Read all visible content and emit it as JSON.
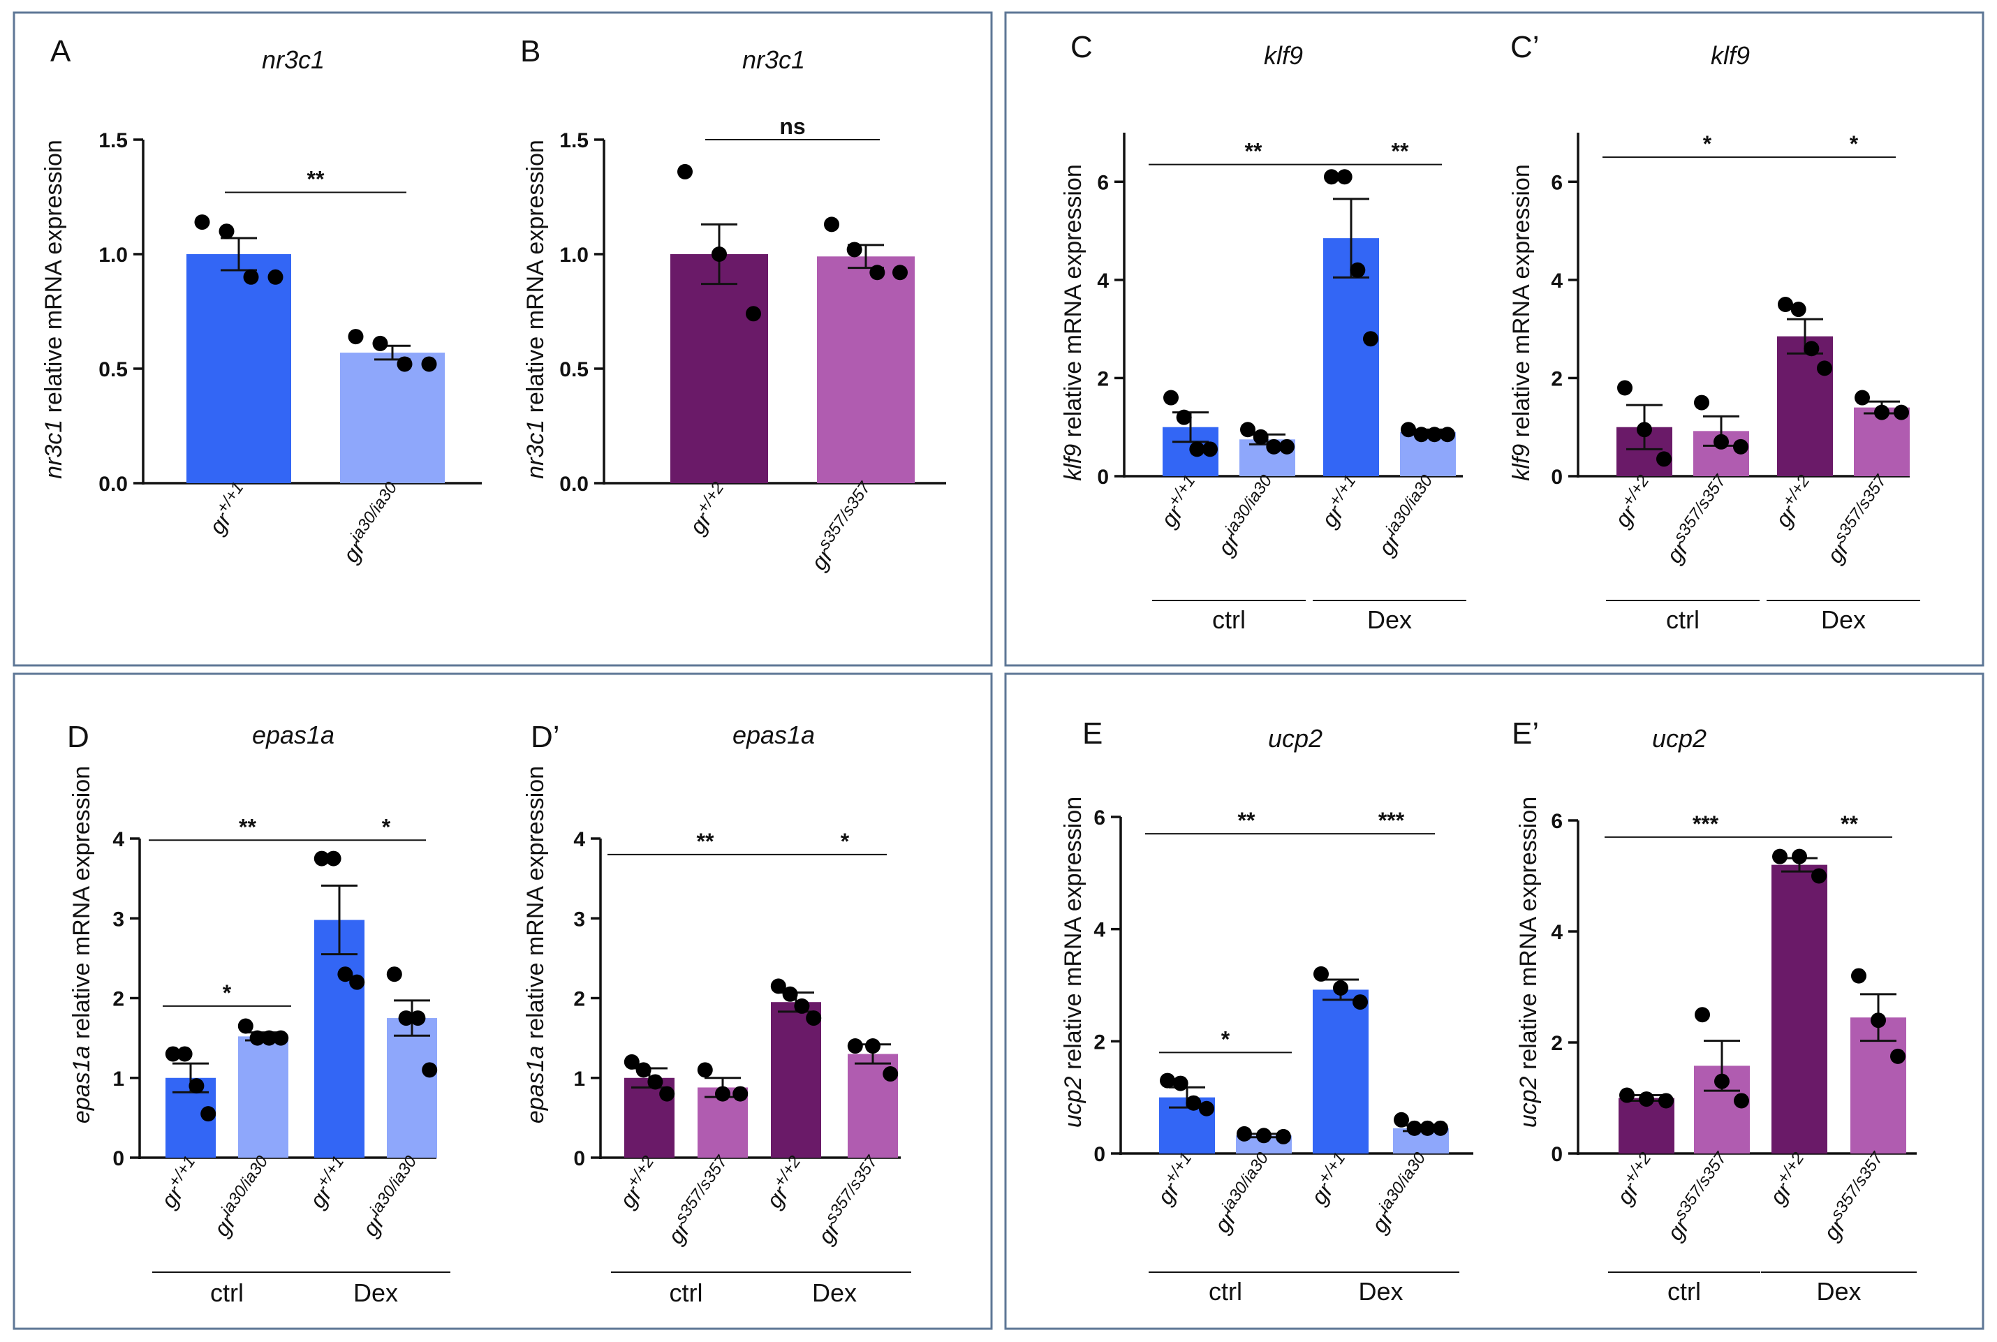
{
  "figure": {
    "colors": {
      "blue_dark": "#3366f5",
      "blue_light": "#8ea7fb",
      "purple_dark": "#6a1a68",
      "purple_light": "#b05cb0",
      "frame": "#5e7796"
    }
  },
  "chart_data": [
    {
      "id": "A",
      "panel_label": "A",
      "title": "nr3c1",
      "type": "bar",
      "ylabel_gene": "nr3c1",
      "ylabel_rest": " relative mRNA expression",
      "ylim": [
        0,
        1.5
      ],
      "yticks": [
        "0.0",
        "0.5",
        "1.0",
        "1.5"
      ],
      "categories": [
        {
          "base": "gr",
          "sup": "+/+1",
          "value": 1.0,
          "sem": 0.07,
          "color": "#3366f5",
          "points": [
            1.14,
            1.1,
            0.9,
            0.9
          ]
        },
        {
          "base": "gr",
          "sup": "ia30/ia30",
          "value": 0.57,
          "sem": 0.03,
          "color": "#8ea7fb",
          "points": [
            0.64,
            0.61,
            0.52,
            0.52
          ]
        }
      ],
      "groups": [],
      "significance": [
        {
          "from": 0,
          "to": 1,
          "label": "**"
        }
      ]
    },
    {
      "id": "B",
      "panel_label": "B",
      "title": "nr3c1",
      "type": "bar",
      "ylabel_gene": "nr3c1",
      "ylabel_rest": " relative mRNA expression",
      "ylim": [
        0,
        1.5
      ],
      "yticks": [
        "0.0",
        "0.5",
        "1.0",
        "1.5"
      ],
      "categories": [
        {
          "base": "gr",
          "sup": "+/+2",
          "value": 1.0,
          "sem": 0.13,
          "color": "#6a1a68",
          "points": [
            1.36,
            1.0,
            0.74
          ]
        },
        {
          "base": "gr",
          "sup": "s357/s357",
          "value": 0.99,
          "sem": 0.05,
          "color": "#b05cb0",
          "points": [
            1.13,
            1.02,
            0.92,
            0.92
          ]
        }
      ],
      "groups": [],
      "significance": [
        {
          "from": 0,
          "to": 1,
          "label": "ns"
        }
      ]
    },
    {
      "id": "C",
      "panel_label": "C",
      "title": "klf9",
      "type": "bar",
      "ylabel_gene": "klf9",
      "ylabel_rest": " relative mRNA expression",
      "ylim": [
        0,
        7
      ],
      "yticks": [
        "0",
        "2",
        "4",
        "6"
      ],
      "categories": [
        {
          "base": "gr",
          "sup": "+/+1",
          "value": 1.0,
          "sem": 0.3,
          "color": "#3366f5",
          "points": [
            1.6,
            1.2,
            0.55,
            0.55
          ]
        },
        {
          "base": "gr",
          "sup": "ia30/ia30",
          "value": 0.75,
          "sem": 0.1,
          "color": "#8ea7fb",
          "points": [
            0.95,
            0.8,
            0.6,
            0.6
          ]
        },
        {
          "base": "gr",
          "sup": "+/+1",
          "value": 4.85,
          "sem": 0.8,
          "color": "#3366f5",
          "points": [
            6.1,
            6.1,
            4.2,
            2.8
          ]
        },
        {
          "base": "gr",
          "sup": "ia30/ia30",
          "value": 0.9,
          "sem": 0.05,
          "color": "#8ea7fb",
          "points": [
            0.95,
            0.85,
            0.85,
            0.85
          ]
        }
      ],
      "groups": [
        {
          "label": "ctrl",
          "from": 0,
          "to": 1
        },
        {
          "label": "Dex",
          "from": 2,
          "to": 3
        }
      ],
      "significance": [
        {
          "from": 0,
          "to": 2,
          "label": "**"
        },
        {
          "from": 2,
          "to": 3,
          "label": "**"
        }
      ]
    },
    {
      "id": "C2",
      "panel_label": "C’",
      "title": "klf9",
      "type": "bar",
      "ylabel_gene": "klf9",
      "ylabel_rest": " relative mRNA expression",
      "ylim": [
        0,
        7
      ],
      "yticks": [
        "0",
        "2",
        "4",
        "6"
      ],
      "categories": [
        {
          "base": "gr",
          "sup": "+/+2",
          "value": 1.0,
          "sem": 0.45,
          "color": "#6a1a68",
          "points": [
            1.8,
            0.95,
            0.35
          ]
        },
        {
          "base": "gr",
          "sup": "s357/s357",
          "value": 0.92,
          "sem": 0.3,
          "color": "#b05cb0",
          "points": [
            1.5,
            0.7,
            0.6
          ]
        },
        {
          "base": "gr",
          "sup": "+/+2",
          "value": 2.85,
          "sem": 0.35,
          "color": "#6a1a68",
          "points": [
            3.5,
            3.4,
            2.6,
            2.2
          ]
        },
        {
          "base": "gr",
          "sup": "s357/s357",
          "value": 1.4,
          "sem": 0.12,
          "color": "#b05cb0",
          "points": [
            1.6,
            1.3,
            1.3
          ]
        }
      ],
      "groups": [
        {
          "label": "ctrl",
          "from": 0,
          "to": 1
        },
        {
          "label": "Dex",
          "from": 2,
          "to": 3
        }
      ],
      "significance": [
        {
          "from": 0,
          "to": 2,
          "label": "*"
        },
        {
          "from": 2,
          "to": 3,
          "label": "*"
        }
      ]
    },
    {
      "id": "D",
      "panel_label": "D",
      "title": "epas1a",
      "type": "bar",
      "ylabel_gene": "epas1a",
      "ylabel_rest": " relative mRNA expression",
      "ylim": [
        0,
        4
      ],
      "yticks": [
        "0",
        "1",
        "2",
        "3",
        "4"
      ],
      "categories": [
        {
          "base": "gr",
          "sup": "+/+1",
          "value": 1.0,
          "sem": 0.18,
          "color": "#3366f5",
          "points": [
            1.3,
            1.3,
            0.9,
            0.55
          ]
        },
        {
          "base": "gr",
          "sup": "ia30/ia30",
          "value": 1.52,
          "sem": 0.05,
          "color": "#8ea7fb",
          "points": [
            1.65,
            1.5,
            1.5,
            1.5
          ]
        },
        {
          "base": "gr",
          "sup": "+/+1",
          "value": 2.98,
          "sem": 0.43,
          "color": "#3366f5",
          "points": [
            3.75,
            3.75,
            2.3,
            2.2
          ]
        },
        {
          "base": "gr",
          "sup": "ia30/ia30",
          "value": 1.75,
          "sem": 0.22,
          "color": "#8ea7fb",
          "points": [
            2.3,
            1.75,
            1.75,
            1.1
          ]
        }
      ],
      "groups": [
        {
          "label": "ctrl",
          "from": 0,
          "to": 1
        },
        {
          "label": "Dex",
          "from": 2,
          "to": 3
        }
      ],
      "significance": [
        {
          "from": 0,
          "to": 2,
          "label": "**"
        },
        {
          "from": 2,
          "to": 3,
          "label": "*"
        },
        {
          "from": 0,
          "to": 1,
          "label": "*"
        }
      ]
    },
    {
      "id": "D2",
      "panel_label": "D’",
      "title": "epas1a",
      "type": "bar",
      "ylabel_gene": "epas1a",
      "ylabel_rest": " relative mRNA expression",
      "ylim": [
        0,
        4
      ],
      "yticks": [
        "0",
        "1",
        "2",
        "3",
        "4"
      ],
      "categories": [
        {
          "base": "gr",
          "sup": "+/+2",
          "value": 1.0,
          "sem": 0.12,
          "color": "#6a1a68",
          "points": [
            1.2,
            1.1,
            0.95,
            0.8
          ]
        },
        {
          "base": "gr",
          "sup": "s357/s357",
          "value": 0.88,
          "sem": 0.12,
          "color": "#b05cb0",
          "points": [
            1.1,
            0.8,
            0.8
          ]
        },
        {
          "base": "gr",
          "sup": "+/+2",
          "value": 1.95,
          "sem": 0.12,
          "color": "#6a1a68",
          "points": [
            2.15,
            2.05,
            1.9,
            1.75
          ]
        },
        {
          "base": "gr",
          "sup": "s357/s357",
          "value": 1.3,
          "sem": 0.12,
          "color": "#b05cb0",
          "points": [
            1.4,
            1.4,
            1.05
          ]
        }
      ],
      "groups": [
        {
          "label": "ctrl",
          "from": 0,
          "to": 1
        },
        {
          "label": "Dex",
          "from": 2,
          "to": 3
        }
      ],
      "significance": [
        {
          "from": 0,
          "to": 2,
          "label": "**"
        },
        {
          "from": 2,
          "to": 3,
          "label": "*"
        }
      ]
    },
    {
      "id": "E",
      "panel_label": "E",
      "title": "ucp2",
      "type": "bar",
      "ylabel_gene": "ucp2",
      "ylabel_rest": " relative mRNA expression",
      "ylim": [
        0,
        6
      ],
      "yticks": [
        "0",
        "2",
        "4",
        "6"
      ],
      "categories": [
        {
          "base": "gr",
          "sup": "+/+1",
          "value": 1.0,
          "sem": 0.18,
          "color": "#3366f5",
          "points": [
            1.3,
            1.25,
            0.9,
            0.8
          ]
        },
        {
          "base": "gr",
          "sup": "ia30/ia30",
          "value": 0.32,
          "sem": 0.03,
          "color": "#8ea7fb",
          "points": [
            0.35,
            0.32,
            0.3
          ]
        },
        {
          "base": "gr",
          "sup": "+/+1",
          "value": 2.92,
          "sem": 0.18,
          "color": "#3366f5",
          "points": [
            3.2,
            2.95,
            2.7
          ]
        },
        {
          "base": "gr",
          "sup": "ia30/ia30",
          "value": 0.45,
          "sem": 0.05,
          "color": "#8ea7fb",
          "points": [
            0.6,
            0.45,
            0.45,
            0.45
          ]
        }
      ],
      "groups": [
        {
          "label": "ctrl",
          "from": 0,
          "to": 1
        },
        {
          "label": "Dex",
          "from": 2,
          "to": 3
        }
      ],
      "significance": [
        {
          "from": 0,
          "to": 2,
          "label": "**"
        },
        {
          "from": 2,
          "to": 3,
          "label": "***"
        },
        {
          "from": 0,
          "to": 1,
          "label": "*"
        }
      ]
    },
    {
      "id": "E2",
      "panel_label": "E’",
      "title": "ucp2",
      "type": "bar",
      "ylabel_gene": "ucp2",
      "ylabel_rest": " relative mRNA expression",
      "ylim": [
        0,
        6
      ],
      "yticks": [
        "0",
        "2",
        "4",
        "6"
      ],
      "categories": [
        {
          "base": "gr",
          "sup": "+/+2",
          "value": 1.0,
          "sem": 0.05,
          "color": "#6a1a68",
          "points": [
            1.05,
            0.98,
            0.95
          ]
        },
        {
          "base": "gr",
          "sup": "s357/s357",
          "value": 1.58,
          "sem": 0.45,
          "color": "#b05cb0",
          "points": [
            2.5,
            1.3,
            0.95
          ]
        },
        {
          "base": "gr",
          "sup": "+/+2",
          "value": 5.2,
          "sem": 0.12,
          "color": "#6a1a68",
          "points": [
            5.35,
            5.35,
            5.0
          ]
        },
        {
          "base": "gr",
          "sup": "s357/s357",
          "value": 2.45,
          "sem": 0.42,
          "color": "#b05cb0",
          "points": [
            3.2,
            2.4,
            1.75
          ]
        }
      ],
      "groups": [
        {
          "label": "ctrl",
          "from": 0,
          "to": 1
        },
        {
          "label": "Dex",
          "from": 2,
          "to": 3
        }
      ],
      "significance": [
        {
          "from": 0,
          "to": 2,
          "label": "***"
        },
        {
          "from": 2,
          "to": 3,
          "label": "**"
        }
      ]
    }
  ]
}
